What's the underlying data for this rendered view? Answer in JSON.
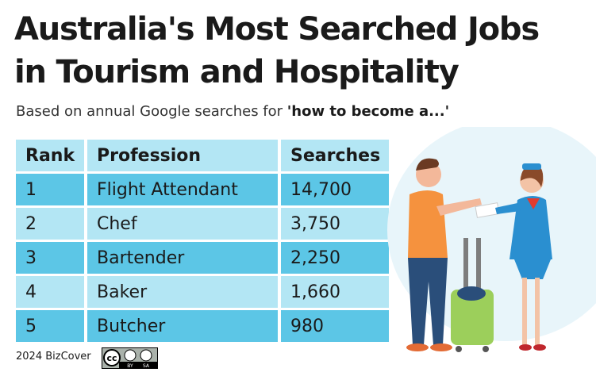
{
  "header": {
    "title_line1": "Australia's Most Searched Jobs",
    "title_line2": "in Tourism and Hospitality",
    "subtitle": "Based on annual Google searches for ",
    "subtitle_emphasis": "'how to become a...'"
  },
  "table": {
    "columns": [
      "Rank",
      "Profession",
      "Searches"
    ],
    "rows": [
      [
        "1",
        "Flight Attendant",
        "14,700"
      ],
      [
        "2",
        "Chef",
        "3,750"
      ],
      [
        "3",
        "Bartender",
        "2,250"
      ],
      [
        "4",
        "Baker",
        "1,660"
      ],
      [
        "5",
        "Butcher",
        "980"
      ]
    ]
  },
  "footer": {
    "source": "2024 BizCover",
    "license": [
      "cc",
      "BY",
      "SA"
    ]
  }
}
